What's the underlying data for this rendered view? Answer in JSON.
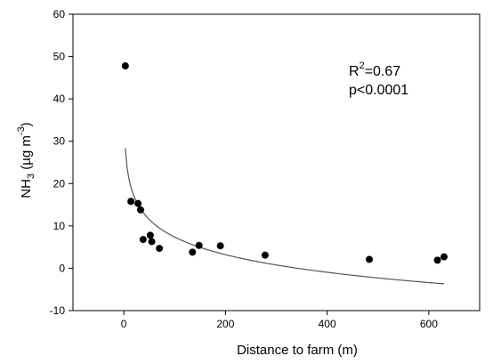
{
  "chart_data": {
    "type": "scatter",
    "xlabel": "Distance to farm (m)",
    "ylabel": {
      "prefix": "NH",
      "subscript": "3",
      "unit_open": " (µg m",
      "superscript": "-3",
      "unit_close": ")"
    },
    "xlim": [
      -100,
      700
    ],
    "ylim": [
      -10,
      60
    ],
    "xticks": [
      0,
      200,
      400,
      600
    ],
    "yticks": [
      -10,
      0,
      10,
      20,
      30,
      40,
      50,
      60
    ],
    "grid": false,
    "annotation": {
      "r2_label": "R",
      "r2_sup": "2",
      "r2_value": "=0.67",
      "p_text": "p<0.0001"
    },
    "points": [
      {
        "x": 3,
        "y": 47.8
      },
      {
        "x": 14,
        "y": 15.8
      },
      {
        "x": 28,
        "y": 15.3
      },
      {
        "x": 33,
        "y": 13.8
      },
      {
        "x": 38,
        "y": 6.8
      },
      {
        "x": 52,
        "y": 7.8
      },
      {
        "x": 55,
        "y": 6.3
      },
      {
        "x": 70,
        "y": 4.7
      },
      {
        "x": 135,
        "y": 3.8
      },
      {
        "x": 148,
        "y": 5.4
      },
      {
        "x": 190,
        "y": 5.3
      },
      {
        "x": 278,
        "y": 3.1
      },
      {
        "x": 483,
        "y": 2.1
      },
      {
        "x": 617,
        "y": 1.9
      },
      {
        "x": 630,
        "y": 2.7
      }
    ],
    "fit": {
      "type": "logarithmic",
      "x_range": [
        3,
        630
      ],
      "a": 35.0,
      "b": -6.0
    }
  }
}
